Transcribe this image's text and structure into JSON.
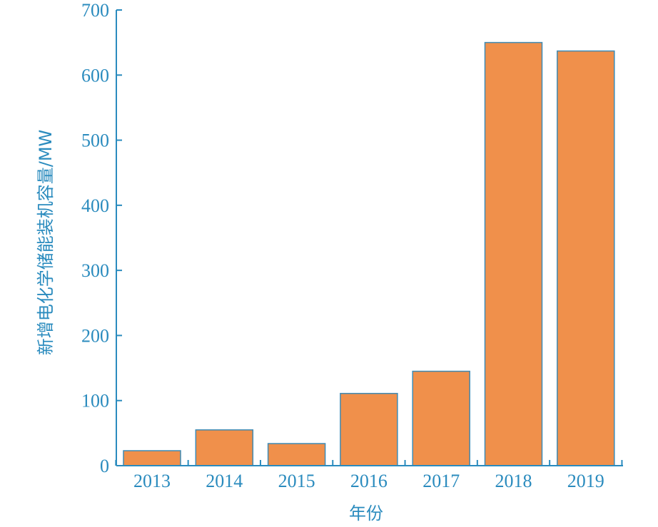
{
  "colors": {
    "axis": "#2A8BBE",
    "bar_fill": "#F0904B",
    "bar_stroke": "#3E8BB5"
  },
  "chart_data": {
    "type": "bar",
    "categories": [
      "2013",
      "2014",
      "2015",
      "2016",
      "2017",
      "2018",
      "2019"
    ],
    "values": [
      23,
      55,
      34,
      111,
      145,
      650,
      637
    ],
    "xlabel": "年份",
    "ylabel": "新增电化学储能装机容量/MW",
    "ylim": [
      0,
      700
    ],
    "yticks": [
      "0",
      "100",
      "200",
      "300",
      "400",
      "500",
      "600",
      "700"
    ],
    "grid": false,
    "legend": "none"
  }
}
